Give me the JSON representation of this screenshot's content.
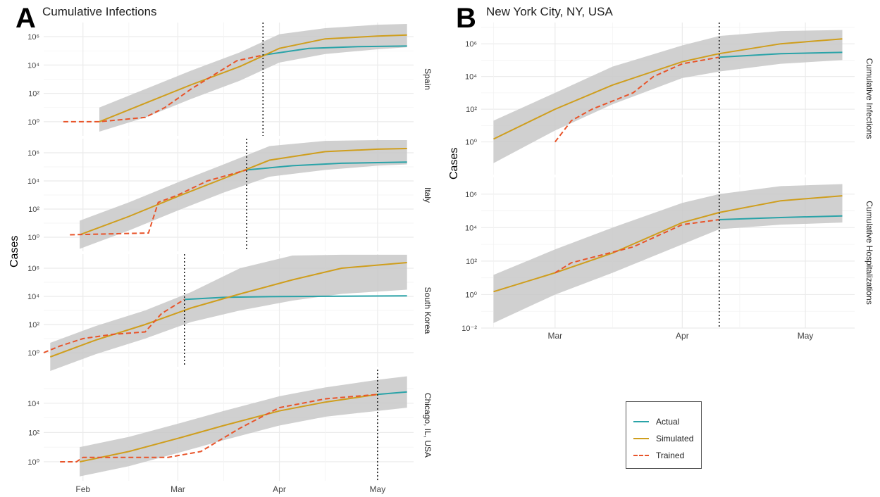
{
  "panel_a": {
    "letter": "A",
    "title": "Cumulative Infections",
    "ylabel": "Cases"
  },
  "panel_b": {
    "letter": "B",
    "title": "New York City, NY, USA",
    "ylabel": "Cases"
  },
  "legend": {
    "items": [
      {
        "label": "Actual",
        "color": "#2aa3a8",
        "style": "solid"
      },
      {
        "label": "Simulated",
        "color": "#cf9e1d",
        "style": "solid"
      },
      {
        "label": "Trained",
        "color": "#e8542a",
        "style": "dashed"
      }
    ]
  },
  "colors": {
    "actual": "#2aa3a8",
    "simulated": "#cf9e1d",
    "trained": "#e8542a",
    "band": "#c8c8c8",
    "grid": "#ebebeb"
  },
  "chart_data": [
    {
      "type": "line",
      "panel": "A",
      "facet": "Spain",
      "y_scale": "log10",
      "ylim": [
        0.1,
        10000000
      ],
      "yticks": [
        [
          "0",
          "10⁰"
        ],
        [
          "2",
          "10²"
        ],
        [
          "4",
          "10⁴"
        ],
        [
          "6",
          "10⁶"
        ]
      ],
      "xlim": [
        "2020-01-20",
        "2020-05-12"
      ],
      "cutoff": "2020-03-27",
      "series": [
        {
          "name": "Actual",
          "x": [
            "2020-03-27",
            "2020-04-10",
            "2020-04-25",
            "2020-05-10"
          ],
          "y": [
            50000,
            150000,
            200000,
            220000
          ]
        },
        {
          "name": "Simulated",
          "x": [
            "2020-02-06",
            "2020-02-20",
            "2020-03-05",
            "2020-03-20",
            "2020-04-01",
            "2020-04-15",
            "2020-05-01",
            "2020-05-10"
          ],
          "y": [
            1,
            20,
            400,
            8000,
            150000,
            700000,
            1100000,
            1300000
          ]
        },
        {
          "name": "Trained",
          "x": [
            "2020-01-26",
            "2020-02-06",
            "2020-02-20",
            "2020-02-26",
            "2020-03-05",
            "2020-03-12",
            "2020-03-19",
            "2020-03-27"
          ],
          "y": [
            1,
            1,
            2,
            10,
            200,
            2000,
            20000,
            50000
          ]
        }
      ],
      "band": {
        "x": [
          "2020-02-06",
          "2020-02-20",
          "2020-03-05",
          "2020-03-20",
          "2020-04-01",
          "2020-04-15",
          "2020-05-01",
          "2020-05-10"
        ],
        "lower": [
          0.2,
          2,
          40,
          800,
          15000,
          60000,
          130000,
          180000
        ],
        "upper": [
          10,
          200,
          4000,
          80000,
          1500000,
          4000000,
          7000000,
          8000000
        ]
      }
    },
    {
      "type": "line",
      "panel": "A",
      "facet": "Italy",
      "y_scale": "log10",
      "ylim": [
        0.1,
        10000000
      ],
      "yticks": [
        [
          "0",
          "10⁰"
        ],
        [
          "2",
          "10²"
        ],
        [
          "4",
          "10⁴"
        ],
        [
          "6",
          "10⁶"
        ]
      ],
      "xlim": [
        "2020-01-20",
        "2020-05-12"
      ],
      "cutoff": "2020-03-22",
      "series": [
        {
          "name": "Actual",
          "x": [
            "2020-03-22",
            "2020-04-05",
            "2020-04-20",
            "2020-05-10"
          ],
          "y": [
            60000,
            120000,
            180000,
            220000
          ]
        },
        {
          "name": "Simulated",
          "x": [
            "2020-01-31",
            "2020-02-15",
            "2020-03-01",
            "2020-03-15",
            "2020-03-29",
            "2020-04-15",
            "2020-05-01",
            "2020-05-10"
          ],
          "y": [
            1.5,
            30,
            800,
            15000,
            300000,
            1200000,
            1800000,
            2000000
          ]
        },
        {
          "name": "Trained",
          "x": [
            "2020-01-28",
            "2020-02-21",
            "2020-02-24",
            "2020-03-01",
            "2020-03-10",
            "2020-03-22"
          ],
          "y": [
            1.5,
            2,
            300,
            1000,
            10000,
            60000
          ]
        }
      ],
      "band": {
        "x": [
          "2020-01-31",
          "2020-02-15",
          "2020-03-01",
          "2020-03-15",
          "2020-03-29",
          "2020-04-15",
          "2020-05-01",
          "2020-05-10"
        ],
        "lower": [
          0.15,
          3,
          80,
          1500,
          20000,
          60000,
          120000,
          150000
        ],
        "upper": [
          15,
          300,
          8000,
          150000,
          3000000,
          7000000,
          8000000,
          8000000
        ]
      }
    },
    {
      "type": "line",
      "panel": "A",
      "facet": "South Korea",
      "y_scale": "log10",
      "ylim": [
        0.1,
        10000000
      ],
      "yticks": [
        [
          "0",
          "10⁰"
        ],
        [
          "2",
          "10²"
        ],
        [
          "4",
          "10⁴"
        ],
        [
          "6",
          "10⁶"
        ]
      ],
      "xlim": [
        "2020-01-20",
        "2020-05-12"
      ],
      "cutoff": "2020-03-03",
      "series": [
        {
          "name": "Actual",
          "x": [
            "2020-03-03",
            "2020-03-15",
            "2020-04-01",
            "2020-05-10"
          ],
          "y": [
            6000,
            8500,
            9800,
            10800
          ]
        },
        {
          "name": "Simulated",
          "x": [
            "2020-01-22",
            "2020-02-05",
            "2020-02-20",
            "2020-03-05",
            "2020-03-20",
            "2020-04-05",
            "2020-04-20",
            "2020-05-10"
          ],
          "y": [
            0.5,
            8,
            100,
            1500,
            15000,
            150000,
            1000000,
            2500000
          ]
        },
        {
          "name": "Trained",
          "x": [
            "2020-01-20",
            "2020-01-25",
            "2020-02-01",
            "2020-02-10",
            "2020-02-20",
            "2020-02-25",
            "2020-03-03"
          ],
          "y": [
            1,
            3,
            10,
            20,
            30,
            600,
            6000
          ]
        }
      ],
      "band": {
        "x": [
          "2020-01-22",
          "2020-02-05",
          "2020-02-20",
          "2020-03-05",
          "2020-03-20",
          "2020-04-05",
          "2020-04-20",
          "2020-05-10"
        ],
        "lower": [
          0.05,
          0.8,
          10,
          150,
          1000,
          5000,
          15000,
          30000
        ],
        "upper": [
          5,
          80,
          1000,
          20000,
          1000000,
          8000000,
          9000000,
          9000000
        ]
      }
    },
    {
      "type": "line",
      "panel": "A",
      "facet": "Chicago, IL, USA",
      "y_scale": "log10",
      "ylim": [
        0.05,
        2000000
      ],
      "yticks": [
        [
          "0",
          "10⁰"
        ],
        [
          "2",
          "10²"
        ],
        [
          "4",
          "10⁴"
        ]
      ],
      "xlim": [
        "2020-01-20",
        "2020-05-12"
      ],
      "cutoff": "2020-05-01",
      "series": [
        {
          "name": "Actual",
          "x": [
            "2020-05-01",
            "2020-05-10"
          ],
          "y": [
            40000,
            60000
          ]
        },
        {
          "name": "Simulated",
          "x": [
            "2020-01-31",
            "2020-02-15",
            "2020-03-01",
            "2020-03-15",
            "2020-04-01",
            "2020-04-15",
            "2020-05-01"
          ],
          "y": [
            1,
            5,
            40,
            300,
            3000,
            12000,
            40000
          ]
        },
        {
          "name": "Trained",
          "x": [
            "2020-01-25",
            "2020-01-30",
            "2020-02-01",
            "2020-02-27",
            "2020-03-08",
            "2020-03-20",
            "2020-04-01",
            "2020-04-15",
            "2020-05-01"
          ],
          "y": [
            1,
            1,
            2,
            2,
            5,
            200,
            5000,
            20000,
            40000
          ]
        }
      ],
      "band": {
        "x": [
          "2020-01-31",
          "2020-02-15",
          "2020-03-01",
          "2020-03-15",
          "2020-04-01",
          "2020-04-15",
          "2020-05-01",
          "2020-05-10"
        ],
        "lower": [
          0.1,
          0.5,
          4,
          30,
          300,
          1200,
          3000,
          5000
        ],
        "upper": [
          10,
          50,
          400,
          3000,
          30000,
          120000,
          400000,
          700000
        ]
      }
    },
    {
      "type": "line",
      "panel": "B",
      "facet": "Cumulative Infections",
      "y_scale": "log10",
      "ylim": [
        0.01,
        20000000
      ],
      "yticks": [
        [
          "0",
          "10⁰"
        ],
        [
          "2",
          "10²"
        ],
        [
          "4",
          "10⁴"
        ],
        [
          "6",
          "10⁶"
        ]
      ],
      "xlim": [
        "2020-02-12",
        "2020-05-13"
      ],
      "cutoff": "2020-04-10",
      "series": [
        {
          "name": "Actual",
          "x": [
            "2020-04-10",
            "2020-04-25",
            "2020-05-10"
          ],
          "y": [
            150000,
            250000,
            300000
          ]
        },
        {
          "name": "Simulated",
          "x": [
            "2020-02-15",
            "2020-03-01",
            "2020-03-15",
            "2020-04-01",
            "2020-04-10",
            "2020-04-25",
            "2020-05-10"
          ],
          "y": [
            1.5,
            100,
            3000,
            80000,
            250000,
            1000000,
            2000000
          ]
        },
        {
          "name": "Trained",
          "x": [
            "2020-03-01",
            "2020-03-05",
            "2020-03-10",
            "2020-03-20",
            "2020-03-25",
            "2020-04-01",
            "2020-04-10"
          ],
          "y": [
            1,
            20,
            100,
            1000,
            10000,
            60000,
            150000
          ]
        }
      ],
      "band": {
        "x": [
          "2020-02-15",
          "2020-03-01",
          "2020-03-15",
          "2020-04-01",
          "2020-04-10",
          "2020-04-25",
          "2020-05-10"
        ],
        "lower": [
          0.05,
          5,
          200,
          8000,
          20000,
          60000,
          100000
        ],
        "upper": [
          20,
          1000,
          40000,
          800000,
          3000000,
          6000000,
          7000000
        ]
      }
    },
    {
      "type": "line",
      "panel": "B",
      "facet": "Cumulative Hospitalizations",
      "y_scale": "log10",
      "ylim": [
        0.01,
        10000000
      ],
      "yticks": [
        [
          "-2",
          "10⁻²"
        ],
        [
          "0",
          "10⁰"
        ],
        [
          "2",
          "10²"
        ],
        [
          "4",
          "10⁴"
        ],
        [
          "6",
          "10⁶"
        ]
      ],
      "xlim": [
        "2020-02-12",
        "2020-05-13"
      ],
      "cutoff": "2020-04-10",
      "series": [
        {
          "name": "Actual",
          "x": [
            "2020-04-10",
            "2020-04-25",
            "2020-05-10"
          ],
          "y": [
            30000,
            40000,
            50000
          ]
        },
        {
          "name": "Simulated",
          "x": [
            "2020-02-15",
            "2020-03-01",
            "2020-03-15",
            "2020-04-01",
            "2020-04-10",
            "2020-04-25",
            "2020-05-10"
          ],
          "y": [
            1.5,
            20,
            300,
            20000,
            80000,
            400000,
            800000
          ]
        },
        {
          "name": "Trained",
          "x": [
            "2020-03-01",
            "2020-03-05",
            "2020-03-20",
            "2020-04-01",
            "2020-04-10"
          ],
          "y": [
            20,
            80,
            700,
            15000,
            30000
          ]
        }
      ],
      "band": {
        "x": [
          "2020-02-15",
          "2020-03-01",
          "2020-03-15",
          "2020-04-01",
          "2020-04-10",
          "2020-04-25",
          "2020-05-10"
        ],
        "lower": [
          0.02,
          1,
          20,
          1000,
          8000,
          15000,
          20000
        ],
        "upper": [
          15,
          500,
          10000,
          300000,
          1000000,
          3000000,
          4000000
        ]
      }
    }
  ],
  "x_axes": {
    "panel_a_ticks": [
      [
        "2020-02-01",
        "Feb"
      ],
      [
        "2020-03-01",
        "Mar"
      ],
      [
        "2020-04-01",
        "Apr"
      ],
      [
        "2020-05-01",
        "May"
      ]
    ],
    "panel_b_ticks": [
      [
        "2020-03-01",
        "Mar"
      ],
      [
        "2020-04-01",
        "Apr"
      ],
      [
        "2020-05-01",
        "May"
      ]
    ]
  }
}
